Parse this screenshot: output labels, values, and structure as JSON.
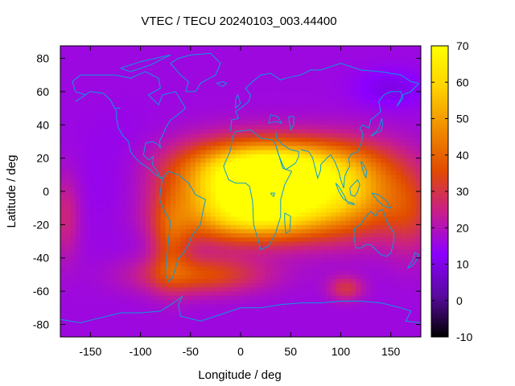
{
  "chart_data": {
    "type": "heatmap",
    "title": "VTEC / TECU 20240103_003.44400",
    "xlabel": "Longitude / deg",
    "ylabel": "Latitude / deg",
    "xlim": [
      -180,
      180
    ],
    "ylim": [
      -87.5,
      87.5
    ],
    "x_ticks": [
      -150,
      -100,
      -50,
      0,
      50,
      100,
      150
    ],
    "y_ticks": [
      -80,
      -60,
      -40,
      -20,
      0,
      20,
      40,
      60,
      80
    ],
    "colorbar": {
      "range": [
        -10,
        70
      ],
      "ticks": [
        -10,
        0,
        10,
        20,
        30,
        40,
        50,
        60,
        70
      ],
      "colormap": [
        "#000000",
        "#5a0aa0",
        "#8c00ff",
        "#c81e8c",
        "#e14b00",
        "#f08c00",
        "#ffd200",
        "#ffff00"
      ]
    },
    "background_level": 16,
    "features": [
      {
        "name": "equatorial anomaly Africa/Atlantic",
        "lon": 20,
        "lat": 2,
        "peak": 66
      },
      {
        "name": "anomaly crest north",
        "lon": 35,
        "lat": 18,
        "peak": 22
      },
      {
        "name": "anomaly crest south",
        "lon": 10,
        "lat": -18,
        "peak": 20
      },
      {
        "name": "equatorial extension east",
        "lon": 115,
        "lat": 0,
        "peak": 26
      },
      {
        "name": "southern mid-latitude band",
        "lon": -40,
        "lat": -50,
        "peak": 20
      },
      {
        "name": "southern Indian Ocean patch",
        "lon": 105,
        "lat": -58,
        "peak": 14
      },
      {
        "name": "south-west Atlantic arc",
        "lon": -70,
        "lat": -30,
        "peak": 16
      }
    ],
    "grid": false,
    "coastline_color": "#0a9bdc"
  }
}
